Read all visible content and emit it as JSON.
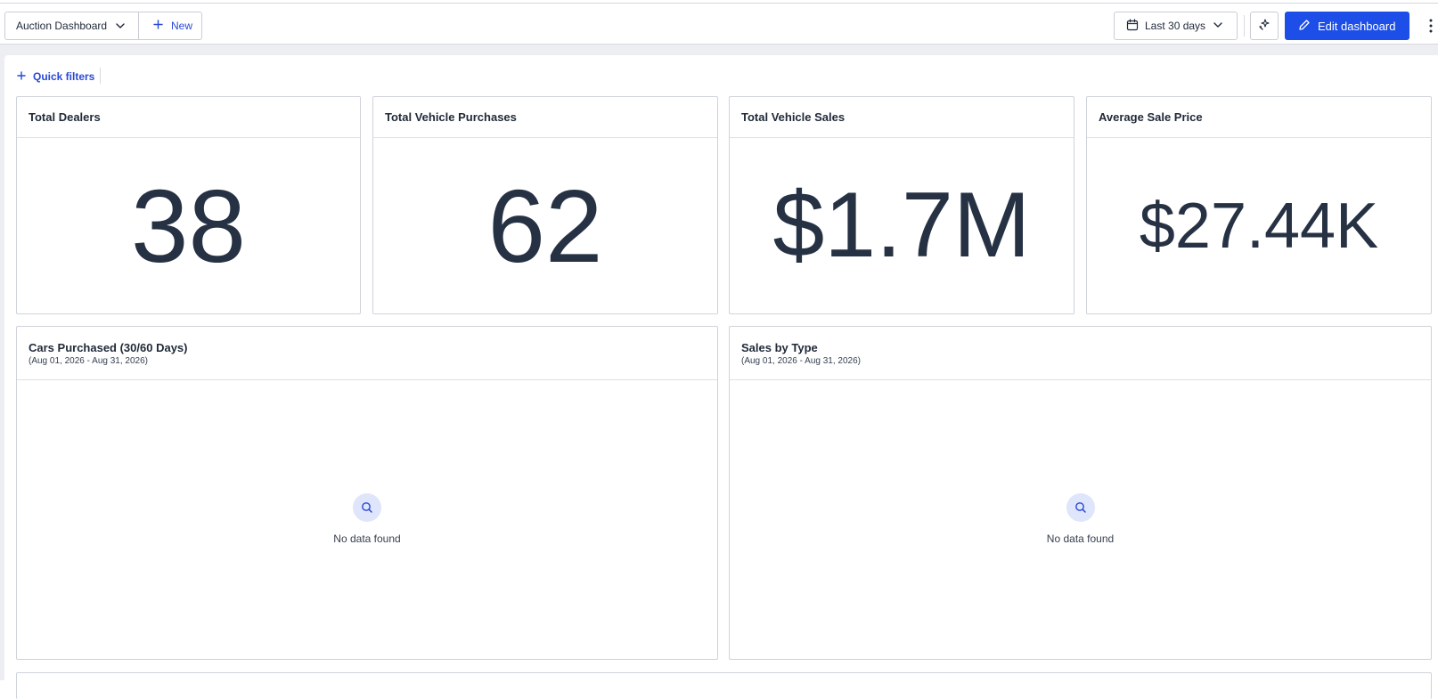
{
  "toolbar": {
    "dashboard_name": "Auction Dashboard",
    "new_label": "New",
    "date_range": "Last 30 days",
    "edit_label": "Edit dashboard"
  },
  "filters": {
    "quick_filters_label": "Quick filters"
  },
  "kpis": [
    {
      "title": "Total Dealers",
      "value": "38"
    },
    {
      "title": "Total Vehicle Purchases",
      "value": "62"
    },
    {
      "title": "Total Vehicle Sales",
      "value": "$1.7M"
    },
    {
      "title": "Average Sale Price",
      "value": "$27.44K"
    }
  ],
  "charts": [
    {
      "title": "Cars Purchased (30/60 Days)",
      "subtitle": "(Aug 01, 2026 - Aug 31, 2026)",
      "empty_text": "No data found"
    },
    {
      "title": "Sales by Type",
      "subtitle": "(Aug 01, 2026 - Aug 31, 2026)",
      "empty_text": "No data found"
    }
  ],
  "colors": {
    "accent": "#1d4ee8",
    "link": "#2949d6",
    "kpi_text": "#263244",
    "canvas": "#eceef2"
  },
  "icons": [
    "chevron-down-icon",
    "plus-icon",
    "calendar-icon",
    "sparkle-icon",
    "pencil-icon",
    "more-vertical-icon",
    "search-icon"
  ]
}
